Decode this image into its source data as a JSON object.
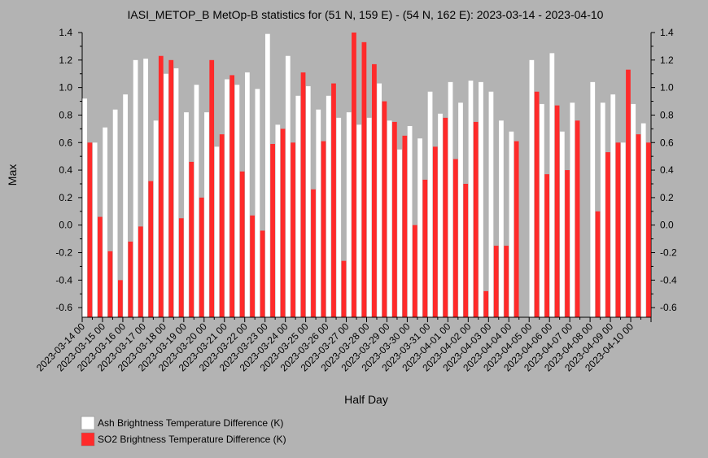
{
  "chart_data": {
    "type": "bar",
    "title": "IASI_METOP_B MetOp-B statistics for (51 N, 159 E) - (54 N, 162 E): 2023-03-14 - 2023-04-10",
    "xlabel": "Half Day",
    "ylabel": "Max",
    "ylim": [
      -0.67,
      1.4
    ],
    "yticks": [
      1.4,
      1.2,
      1.0,
      0.8,
      0.6,
      0.4,
      0.2,
      0.0,
      -0.2,
      -0.4,
      -0.6
    ],
    "ytick_labels": [
      "1.4",
      "1.2",
      "1.0",
      "0.8",
      "0.6",
      "0.4",
      "0.2",
      "0.0",
      "-0.2",
      "-0.4",
      "-0.6"
    ],
    "x_tick_labels": [
      "2023-03-14 00",
      "2023-03-15 00",
      "2023-03-16 00",
      "2023-03-17 00",
      "2023-03-18 00",
      "2023-03-19 00",
      "2023-03-20 00",
      "2023-03-21 00",
      "2023-03-22 00",
      "2023-03-23 00",
      "2023-03-24 00",
      "2023-03-25 00",
      "2023-03-26 00",
      "2023-03-27 00",
      "2023-03-28 00",
      "2023-03-29 00",
      "2023-03-30 00",
      "2023-03-31 00",
      "2023-04-01 00",
      "2023-04-02 00",
      "2023-04-03 00",
      "2023-04-04 00",
      "2023-04-05 00",
      "2023-04-06 00",
      "2023-04-07 00",
      "2023-04-08 00",
      "2023-04-09 00",
      "2023-04-10 00"
    ],
    "grid": false,
    "legend_position": "bottom-left",
    "series": [
      {
        "name": "Ash Brightness Temperature Difference (K)",
        "color": "#ffffff",
        "values": [
          0.92,
          0.6,
          0.71,
          0.84,
          0.95,
          1.2,
          1.21,
          0.76,
          1.1,
          1.14,
          0.82,
          1.02,
          0.82,
          0.57,
          1.06,
          1.02,
          1.11,
          0.99,
          1.39,
          0.73,
          1.23,
          0.94,
          1.01,
          0.84,
          0.94,
          0.78,
          0.82,
          0.73,
          0.78,
          1.03,
          0.76,
          0.55,
          0.72,
          0.63,
          0.97,
          0.81,
          1.04,
          0.89,
          1.05,
          1.04,
          0.97,
          0.76,
          0.68,
          null,
          1.2,
          0.88,
          1.25,
          0.68,
          0.89,
          null,
          1.04,
          0.89,
          0.95,
          0.6,
          0.88,
          0.74
        ]
      },
      {
        "name": "SO2 Brightness Temperature Difference (K)",
        "color": "#ff2a2a",
        "values": [
          0.6,
          0.06,
          -0.19,
          -0.4,
          -0.12,
          -0.01,
          0.32,
          1.23,
          1.2,
          0.05,
          0.46,
          0.2,
          1.2,
          0.66,
          1.09,
          0.39,
          0.07,
          -0.04,
          0.59,
          0.7,
          0.6,
          1.11,
          0.26,
          0.61,
          1.03,
          -0.26,
          1.4,
          1.33,
          1.17,
          0.9,
          0.75,
          0.65,
          0.0,
          0.33,
          0.57,
          0.78,
          0.48,
          0.3,
          0.75,
          -0.48,
          -0.15,
          -0.15,
          0.61,
          null,
          0.97,
          0.37,
          0.87,
          0.4,
          0.76,
          null,
          0.1,
          0.53,
          0.6,
          1.13,
          0.66,
          0.6
        ]
      }
    ]
  }
}
